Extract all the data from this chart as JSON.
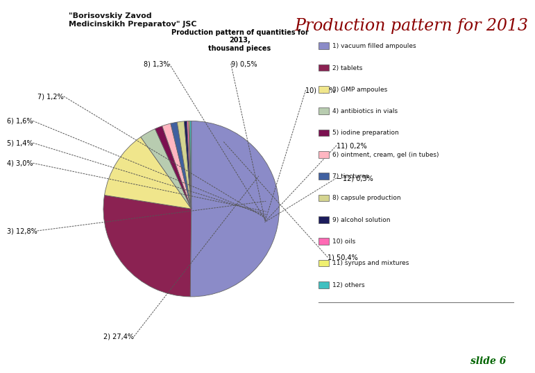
{
  "title": "Production pattern for 2013",
  "pie_title": "Production pattern of quantities for\n2013,\nthousand pieces",
  "slices": [
    {
      "label": "1) 50,4%",
      "pct": 50.4,
      "color": "#8B8BC8"
    },
    {
      "label": "2) 27,4%",
      "pct": 27.4,
      "color": "#8B2252"
    },
    {
      "label": "3) 12,8%",
      "pct": 12.8,
      "color": "#F0E68C"
    },
    {
      "label": "4) 3,0%",
      "pct": 3.0,
      "color": "#B8CCB0"
    },
    {
      "label": "5) 1,4%",
      "pct": 1.4,
      "color": "#7B1050"
    },
    {
      "label": "6) 1,6%",
      "pct": 1.6,
      "color": "#FFB6C1"
    },
    {
      "label": "7) 1,2%",
      "pct": 1.2,
      "color": "#4060A0"
    },
    {
      "label": "8) 1,3%",
      "pct": 1.3,
      "color": "#D4D490"
    },
    {
      "label": "9) 0,5%",
      "pct": 0.5,
      "color": "#1C1C5C"
    },
    {
      "label": "10) 0,3%",
      "pct": 0.3,
      "color": "#FF69B4"
    },
    {
      "label": "11) 0,2%",
      "pct": 0.2,
      "color": "#F0F070"
    },
    {
      "label": "─ 12) 0,3%",
      "pct": 0.3,
      "color": "#40C0C0"
    }
  ],
  "legend_labels": [
    "1) vacuum filled ampoules",
    "2) tablets",
    "3) GMP ampoules",
    "4) antibiotics in vials",
    "5) iodine preparation",
    "6) ointment, cream, gel (in tubes)",
    "7) tinctures",
    "8) capsule production",
    "9) alcohol solution",
    "10) oils",
    "11) syrups and mixtures",
    "12) others"
  ],
  "legend_colors": [
    "#8B8BC8",
    "#8B2252",
    "#F0E68C",
    "#B8CCB0",
    "#7B1050",
    "#FFB6C1",
    "#4060A0",
    "#D4D490",
    "#1C1C5C",
    "#FF69B4",
    "#F0F070",
    "#40C0C0"
  ],
  "background_color": "#FFFFFF",
  "title_color": "#8B0000",
  "slide_text": "slide 6",
  "slide_color": "#006400"
}
